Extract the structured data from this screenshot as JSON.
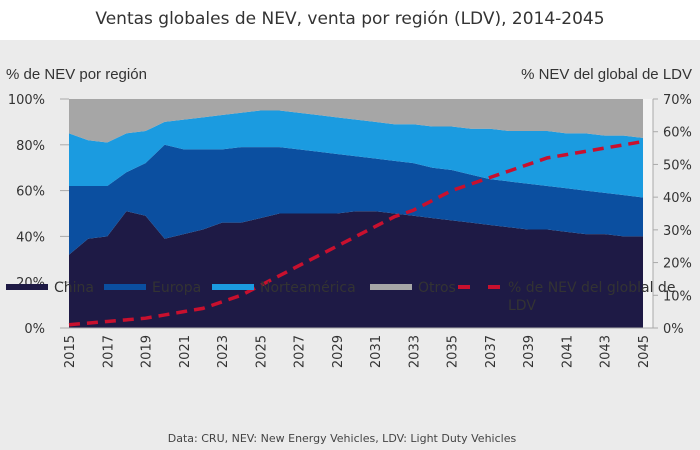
{
  "chart_data": {
    "type": "area",
    "stacked": true,
    "title": "Ventas globales de NEV, venta por región (LDV), 2014-2045",
    "ylabel": "% de NEV por región",
    "y2label": "% NEV del global de LDV",
    "ylim": [
      0,
      100
    ],
    "y2lim": [
      0,
      70
    ],
    "yticks": [
      "0%",
      "20%",
      "40%",
      "60%",
      "80%",
      "100%"
    ],
    "y2ticks": [
      "0%",
      "10%",
      "20%",
      "30%",
      "40%",
      "50%",
      "60%",
      "70%"
    ],
    "xticks": [
      "2015",
      "2017",
      "2019",
      "2021",
      "2023",
      "2025",
      "2027",
      "2029",
      "2031",
      "2033",
      "2035",
      "2037",
      "2039",
      "2041",
      "2043",
      "2045"
    ],
    "x": [
      2015,
      2016,
      2017,
      2018,
      2019,
      2020,
      2021,
      2022,
      2023,
      2024,
      2025,
      2026,
      2027,
      2028,
      2029,
      2030,
      2031,
      2032,
      2033,
      2034,
      2035,
      2036,
      2037,
      2038,
      2039,
      2040,
      2041,
      2042,
      2043,
      2044,
      2045
    ],
    "series": [
      {
        "name": "China",
        "color": "#1e1a45",
        "values": [
          32,
          39,
          40,
          51,
          49,
          39,
          41,
          43,
          46,
          46,
          48,
          50,
          50,
          50,
          50,
          51,
          51,
          50,
          49,
          48,
          47,
          46,
          45,
          44,
          43,
          43,
          42,
          41,
          41,
          40,
          40
        ]
      },
      {
        "name": "Europa",
        "color": "#0b4fa0",
        "values": [
          30,
          23,
          22,
          17,
          23,
          41,
          37,
          35,
          32,
          33,
          31,
          29,
          28,
          27,
          26,
          24,
          23,
          23,
          23,
          22,
          22,
          21,
          20,
          20,
          20,
          19,
          19,
          19,
          18,
          18,
          17
        ]
      },
      {
        "name": "Norteamérica",
        "color": "#1b9be0",
        "values": [
          23,
          20,
          19,
          17,
          14,
          10,
          13,
          14,
          15,
          15,
          16,
          16,
          16,
          16,
          16,
          16,
          16,
          16,
          17,
          18,
          19,
          20,
          22,
          22,
          23,
          24,
          24,
          25,
          25,
          26,
          26
        ]
      },
      {
        "name": "Otros",
        "color": "#a6a6a6",
        "values": [
          15,
          18,
          19,
          15,
          14,
          10,
          9,
          8,
          7,
          6,
          5,
          5,
          6,
          7,
          8,
          9,
          10,
          11,
          11,
          12,
          12,
          13,
          13,
          14,
          14,
          14,
          15,
          15,
          16,
          16,
          17
        ]
      }
    ],
    "line": {
      "name": "% de NEV del globlal de LDV",
      "color": "#c8102e",
      "axis": "right",
      "style": "dashed",
      "values": [
        1,
        1.5,
        2,
        2.5,
        3,
        4,
        5,
        6,
        8,
        10,
        13,
        16,
        19,
        22,
        25,
        28,
        31,
        34,
        36,
        39,
        42,
        44,
        46,
        48,
        50,
        52,
        53,
        54,
        55,
        56,
        57
      ]
    },
    "legend_line2": "LDV",
    "legend_position": "bottom",
    "source": "Data: CRU, NEV: New Energy Vehicles, LDV: Light Duty Vehicles"
  }
}
